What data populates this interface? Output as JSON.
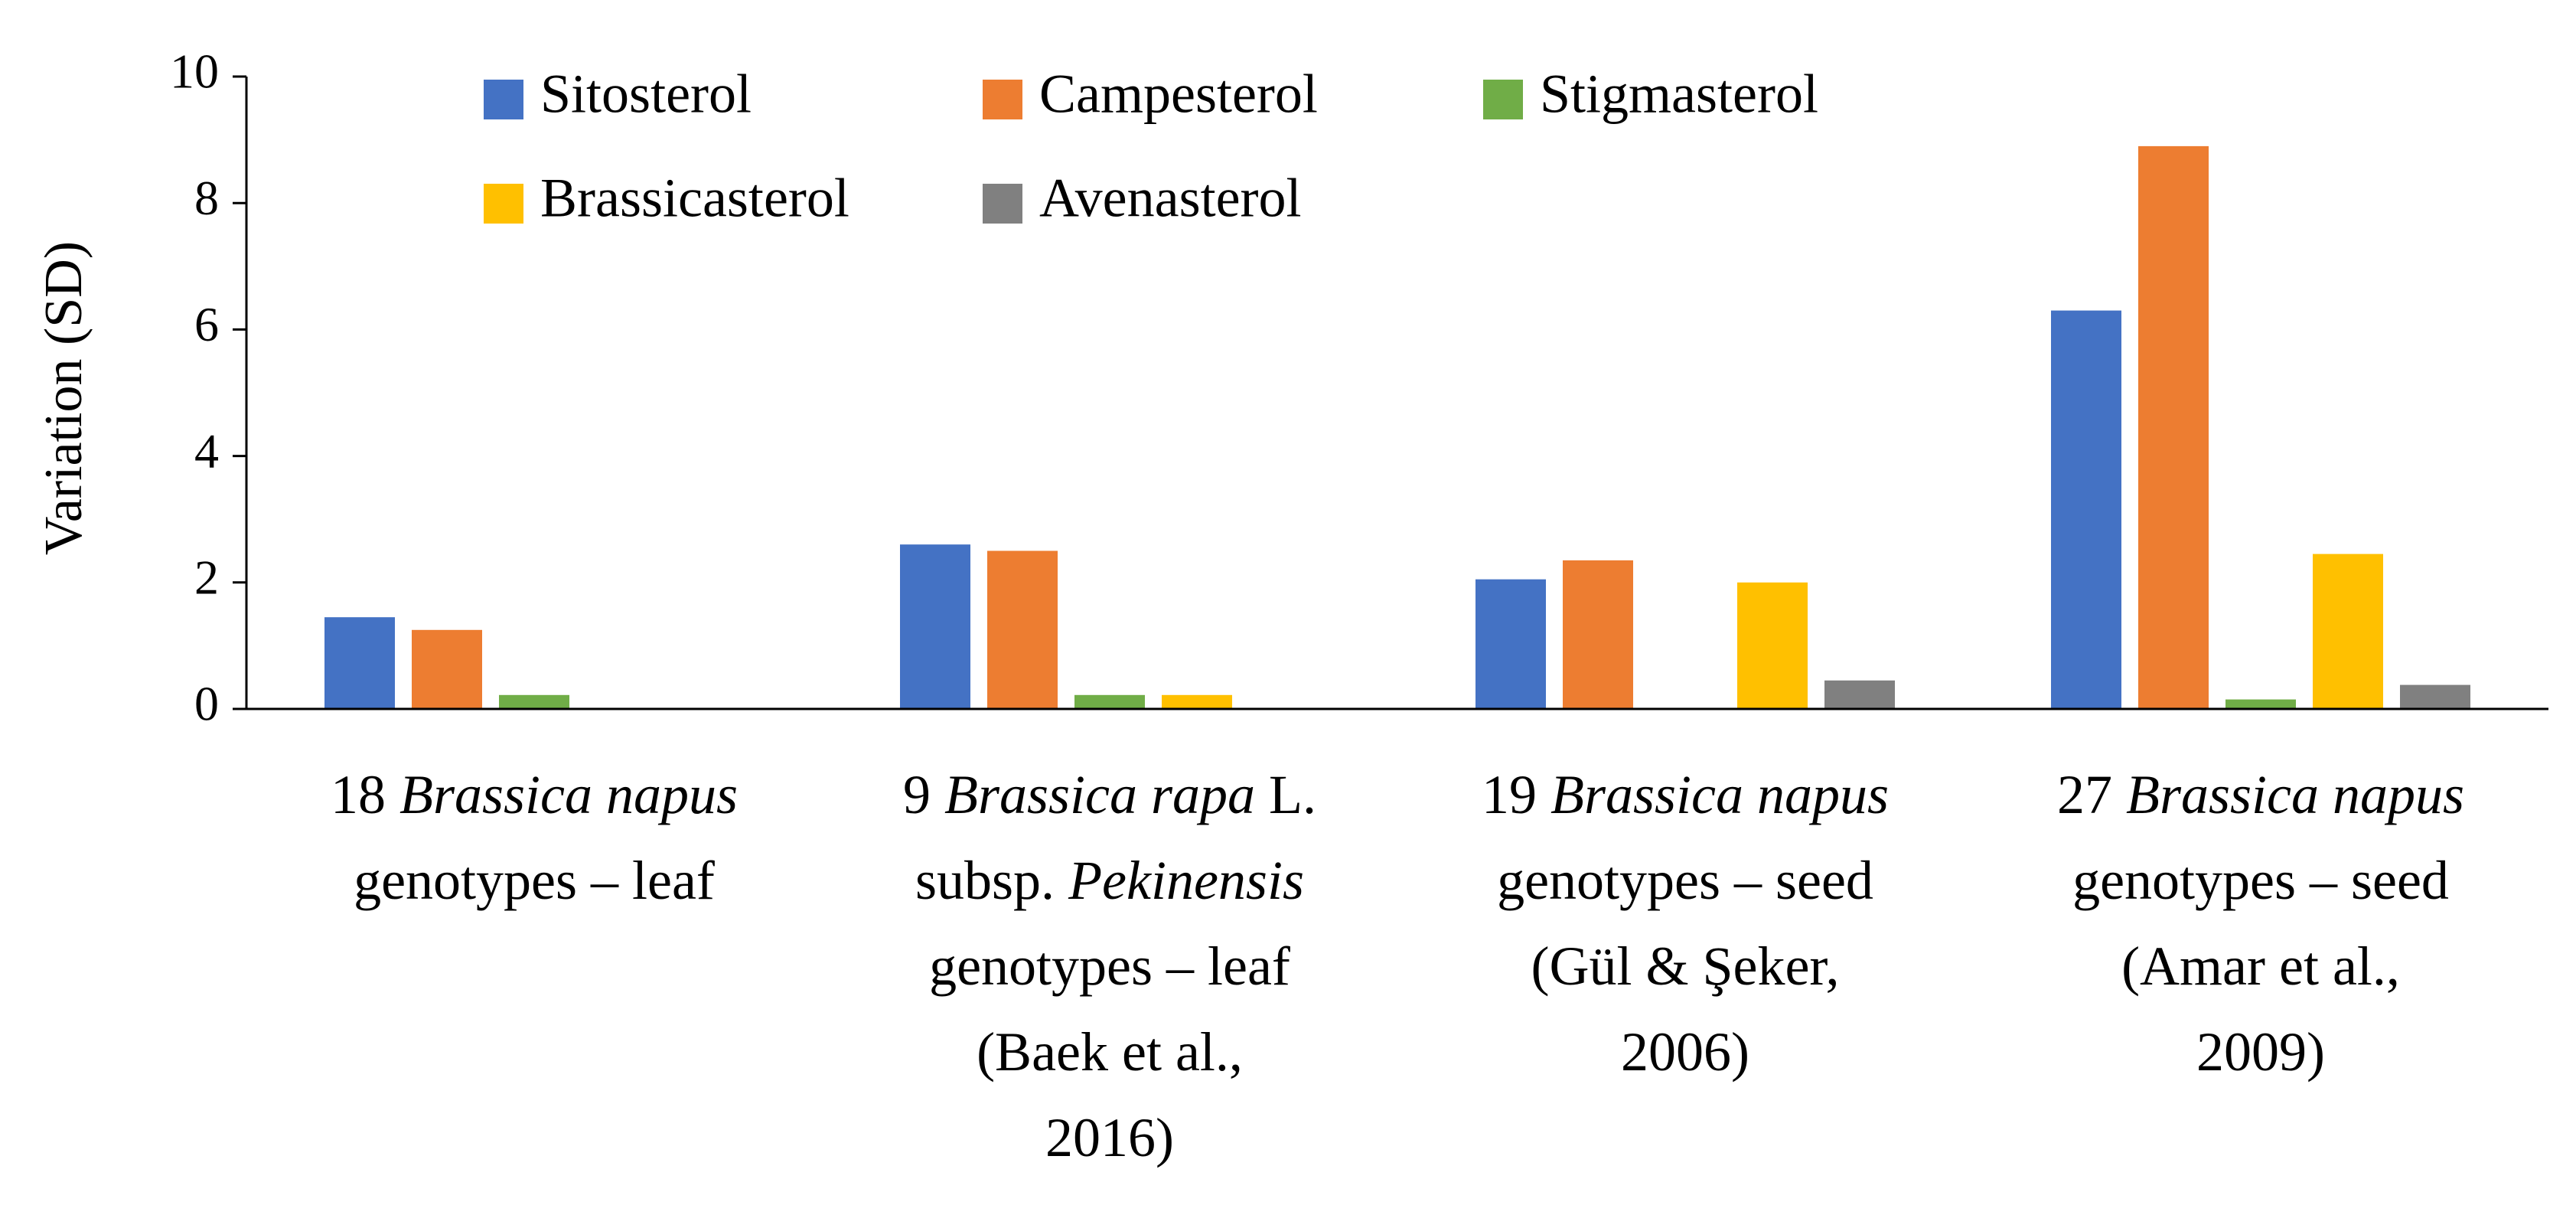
{
  "chart_data": {
    "type": "bar",
    "ylabel": "Variation (SD)",
    "xlabel": "",
    "ylim": [
      0,
      10
    ],
    "yticks": [
      0,
      2,
      4,
      6,
      8,
      10
    ],
    "grid": false,
    "legend_position": "top",
    "categories": [
      [
        [
          {
            "t": "18 ",
            "i": false
          },
          {
            "t": "Brassica napus",
            "i": true
          }
        ],
        [
          {
            "t": "genotypes – leaf",
            "i": false
          }
        ]
      ],
      [
        [
          {
            "t": "9 ",
            "i": false
          },
          {
            "t": "Brassica rapa",
            "i": true
          },
          {
            "t": " L.",
            "i": false
          }
        ],
        [
          {
            "t": "subsp. ",
            "i": false
          },
          {
            "t": "Pekinensis",
            "i": true
          }
        ],
        [
          {
            "t": "genotypes – leaf",
            "i": false
          }
        ],
        [
          {
            "t": "(Baek et al.,",
            "i": false
          }
        ],
        [
          {
            "t": "2016)",
            "i": false
          }
        ]
      ],
      [
        [
          {
            "t": "19 ",
            "i": false
          },
          {
            "t": "Brassica napus",
            "i": true
          }
        ],
        [
          {
            "t": "genotypes – seed",
            "i": false
          }
        ],
        [
          {
            "t": "(Gül & Şeker,",
            "i": false
          }
        ],
        [
          {
            "t": "2006)",
            "i": false
          }
        ]
      ],
      [
        [
          {
            "t": "27 ",
            "i": false
          },
          {
            "t": "Brassica  napus",
            "i": true
          }
        ],
        [
          {
            "t": "genotypes – seed",
            "i": false
          }
        ],
        [
          {
            "t": "(Amar et al.,",
            "i": false
          }
        ],
        [
          {
            "t": "2009)",
            "i": false
          }
        ]
      ]
    ],
    "series": [
      {
        "name": "Sitosterol",
        "color": "#4472C4",
        "values": [
          1.45,
          2.6,
          2.05,
          6.3
        ]
      },
      {
        "name": "Campesterol",
        "color": "#ED7D31",
        "values": [
          1.25,
          2.5,
          2.35,
          8.9
        ]
      },
      {
        "name": "Stigmasterol",
        "color": "#70AD47",
        "values": [
          0.22,
          0.22,
          null,
          0.15
        ]
      },
      {
        "name": "Brassicasterol",
        "color": "#FFC000",
        "values": [
          null,
          0.22,
          2.0,
          2.45
        ]
      },
      {
        "name": "Avenasterol",
        "color": "#808080",
        "values": [
          null,
          null,
          0.45,
          0.38
        ]
      }
    ]
  }
}
